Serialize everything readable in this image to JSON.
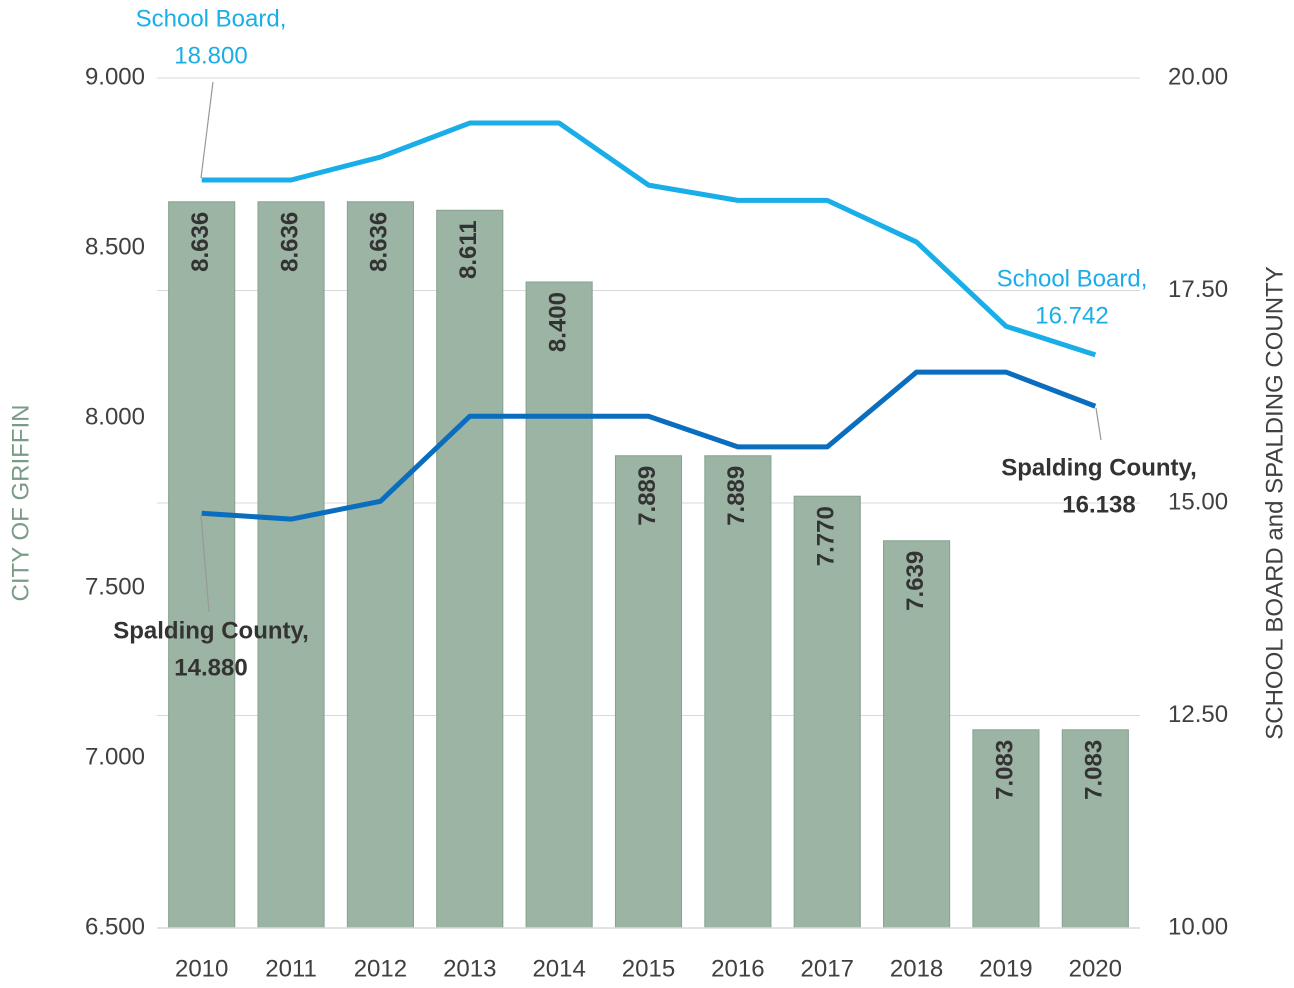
{
  "chart_data": {
    "type": "bar",
    "categories": [
      "2010",
      "2011",
      "2012",
      "2013",
      "2014",
      "2015",
      "2016",
      "2017",
      "2018",
      "2019",
      "2020"
    ],
    "values": [
      8.636,
      8.636,
      8.636,
      8.611,
      8.4,
      7.889,
      7.889,
      7.77,
      7.639,
      7.083,
      7.083
    ],
    "value_labels": [
      "8.636",
      "8.636",
      "8.636",
      "8.611",
      "8.400",
      "7.889",
      "7.889",
      "7.770",
      "7.639",
      "7.083",
      "7.083"
    ],
    "color": "#9bb4a3",
    "ylabel": "CITY OF GRIFFIN",
    "ylim": [
      6.5,
      9
    ],
    "yticks": [
      {
        "value": 6.5,
        "label": "6.500"
      },
      {
        "value": 7,
        "label": "7.000"
      },
      {
        "value": 7.5,
        "label": "7.500"
      },
      {
        "value": 8,
        "label": "8.000"
      },
      {
        "value": 8.5,
        "label": "8.500"
      },
      {
        "value": 9,
        "label": "9.000"
      }
    ],
    "y2label": "SCHOOL BOARD and SPALDING COUNTY",
    "y2lim": [
      10,
      20
    ],
    "y2ticks": [
      {
        "value": 10,
        "label": "10.00"
      },
      {
        "value": 12.5,
        "label": "12.50"
      },
      {
        "value": 15,
        "label": "15.00"
      },
      {
        "value": 17.5,
        "label": "17.50"
      },
      {
        "value": 20,
        "label": "20.00"
      }
    ],
    "grid": true,
    "series": [
      {
        "name": "School Board",
        "type": "line",
        "axis": "y2",
        "color": "#1aaee8",
        "values": [
          18.8,
          18.8,
          19.07,
          19.47,
          19.47,
          18.74,
          18.56,
          18.56,
          18.07,
          17.08,
          16.742
        ]
      },
      {
        "name": "Spalding County",
        "type": "line",
        "axis": "y2",
        "color": "#0b6dbd",
        "values": [
          14.88,
          14.81,
          15.02,
          16.02,
          16.02,
          16.02,
          15.66,
          15.66,
          16.54,
          16.54,
          16.138
        ]
      }
    ],
    "annotations": [
      {
        "lines": [
          "School Board,",
          "18.800"
        ]
      },
      {
        "lines": [
          "School Board,",
          "16.742"
        ]
      },
      {
        "lines": [
          "Spalding County,",
          "14.880"
        ]
      },
      {
        "lines": [
          "Spalding County,",
          "16.138"
        ]
      }
    ]
  }
}
